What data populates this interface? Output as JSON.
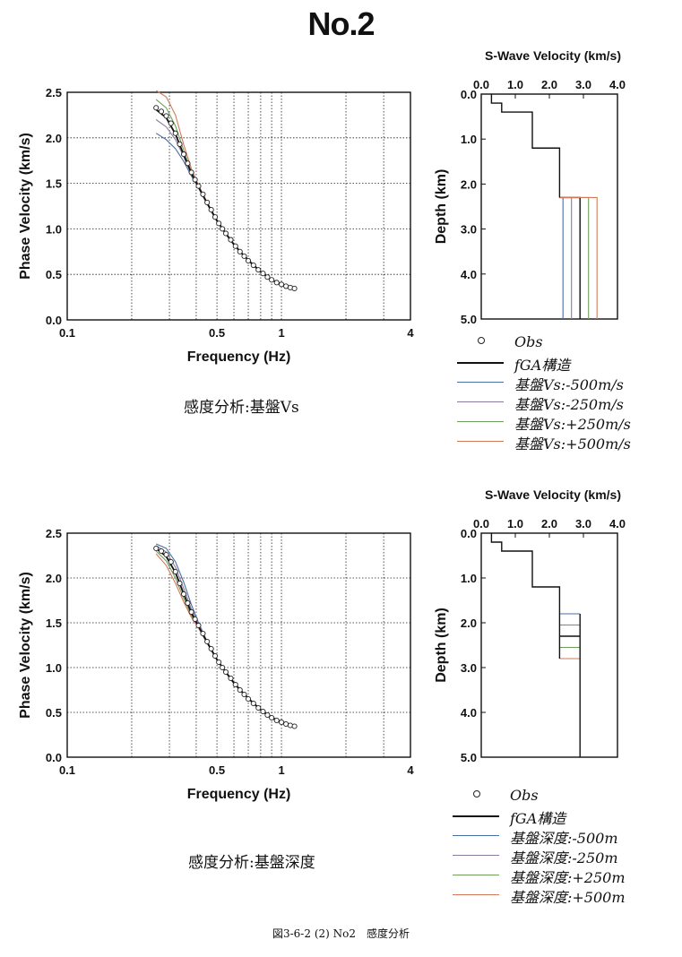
{
  "page_title": "No.2",
  "footer_caption": "図3-6-2 (2) No2　感度分析",
  "colors": {
    "obs": "#222222",
    "fga": "#111111",
    "minus500": "#4a6fa5",
    "minus250": "#8a7aa0",
    "plus250": "#6f9f5a",
    "plus500": "#d2795a"
  },
  "panels": [
    {
      "caption": "感度分析:基盤Vs",
      "legend": [
        {
          "style": "circle",
          "label": "Obs",
          "color": "#222222"
        },
        {
          "style": "line",
          "label": "fGA構造",
          "color": "#111111"
        },
        {
          "style": "line",
          "label": "基盤Vs:-500m/s",
          "color": "#4a6fa5"
        },
        {
          "style": "line",
          "label": "基盤Vs:-250m/s",
          "color": "#8a7aa0"
        },
        {
          "style": "line",
          "label": "基盤Vs:+250m/s",
          "color": "#6f9f5a"
        },
        {
          "style": "line",
          "label": "基盤Vs:+500m/s",
          "color": "#d2795a"
        }
      ]
    },
    {
      "caption": "感度分析:基盤深度",
      "legend": [
        {
          "style": "circle",
          "label": "Obs",
          "color": "#222222"
        },
        {
          "style": "line",
          "label": "fGA構造",
          "color": "#111111"
        },
        {
          "style": "line",
          "label": "基盤深度:-500m",
          "color": "#4a6fa5"
        },
        {
          "style": "line",
          "label": "基盤深度:-250m",
          "color": "#8a7aa0"
        },
        {
          "style": "line",
          "label": "基盤深度:+250m",
          "color": "#6f9f5a"
        },
        {
          "style": "line",
          "label": "基盤深度:+500m",
          "color": "#d2795a"
        }
      ]
    }
  ],
  "chart_data": [
    {
      "id": "dispersion-vs",
      "type": "line",
      "xlabel": "Frequency (Hz)",
      "ylabel": "Phase Velocity (km/s)",
      "xscale": "log",
      "xlim": [
        0.1,
        4
      ],
      "ylim": [
        0.0,
        2.5
      ],
      "xtick_labels": [
        "0.1",
        "0.5",
        "1",
        "4"
      ],
      "ytick_labels": [
        "0.0",
        "0.5",
        "1.0",
        "1.5",
        "2.0",
        "2.5"
      ],
      "grid": true,
      "obs": {
        "name": "Obs",
        "x": [
          0.26,
          0.275,
          0.29,
          0.305,
          0.32,
          0.335,
          0.35,
          0.365,
          0.38,
          0.395,
          0.41,
          0.43,
          0.45,
          0.47,
          0.49,
          0.51,
          0.53,
          0.55,
          0.58,
          0.61,
          0.64,
          0.67,
          0.7,
          0.74,
          0.78,
          0.82,
          0.86,
          0.9,
          0.95,
          1.0,
          1.05,
          1.1,
          1.15
        ],
        "y": [
          2.33,
          2.29,
          2.24,
          2.16,
          2.05,
          1.93,
          1.82,
          1.72,
          1.62,
          1.54,
          1.47,
          1.38,
          1.29,
          1.21,
          1.13,
          1.06,
          1.0,
          0.95,
          0.88,
          0.81,
          0.75,
          0.7,
          0.65,
          0.6,
          0.55,
          0.51,
          0.47,
          0.44,
          0.41,
          0.39,
          0.37,
          0.355,
          0.345
        ]
      },
      "series": [
        {
          "name": "fGA構造",
          "color": "#111111",
          "x": [
            0.26,
            0.29,
            0.32,
            0.35,
            0.38,
            0.41,
            0.45,
            0.5,
            0.55,
            0.6,
            0.66,
            0.72,
            0.8,
            0.9,
            1.0,
            1.1,
            1.15
          ],
          "y": [
            2.31,
            2.22,
            2.04,
            1.81,
            1.61,
            1.46,
            1.28,
            1.09,
            0.95,
            0.83,
            0.72,
            0.63,
            0.53,
            0.44,
            0.39,
            0.36,
            0.34
          ]
        },
        {
          "name": "基盤Vs:-500m/s",
          "color": "#4a6fa5",
          "x": [
            0.26,
            0.29,
            0.32,
            0.35,
            0.38,
            0.41,
            0.45,
            0.5,
            0.55,
            0.6,
            0.66,
            0.72,
            0.8,
            0.9,
            1.0,
            1.1,
            1.15
          ],
          "y": [
            2.05,
            1.98,
            1.88,
            1.74,
            1.58,
            1.45,
            1.27,
            1.08,
            0.94,
            0.82,
            0.71,
            0.62,
            0.52,
            0.44,
            0.39,
            0.36,
            0.34
          ]
        },
        {
          "name": "基盤Vs:-250m/s",
          "color": "#8a7aa0",
          "x": [
            0.26,
            0.29,
            0.32,
            0.35,
            0.38,
            0.41,
            0.45,
            0.5,
            0.55,
            0.6,
            0.66,
            0.72,
            0.8,
            0.9,
            1.0,
            1.1,
            1.15
          ],
          "y": [
            2.2,
            2.12,
            1.98,
            1.79,
            1.6,
            1.46,
            1.28,
            1.09,
            0.95,
            0.83,
            0.72,
            0.63,
            0.53,
            0.44,
            0.39,
            0.36,
            0.34
          ]
        },
        {
          "name": "基盤Vs:+250m/s",
          "color": "#6f9f5a",
          "x": [
            0.26,
            0.29,
            0.32,
            0.35,
            0.38,
            0.41,
            0.45,
            0.5,
            0.55,
            0.6,
            0.66,
            0.72,
            0.8,
            0.9,
            1.0,
            1.1,
            1.15
          ],
          "y": [
            2.42,
            2.33,
            2.13,
            1.86,
            1.63,
            1.47,
            1.29,
            1.09,
            0.95,
            0.83,
            0.72,
            0.63,
            0.53,
            0.44,
            0.39,
            0.36,
            0.34
          ]
        },
        {
          "name": "基盤Vs:+500m/s",
          "color": "#d2795a",
          "x": [
            0.26,
            0.29,
            0.32,
            0.35,
            0.38,
            0.41,
            0.45,
            0.5,
            0.55,
            0.6,
            0.66,
            0.72,
            0.8,
            0.9,
            1.0,
            1.1,
            1.15
          ],
          "y": [
            2.52,
            2.45,
            2.25,
            1.92,
            1.66,
            1.48,
            1.29,
            1.1,
            0.95,
            0.83,
            0.72,
            0.63,
            0.53,
            0.44,
            0.39,
            0.36,
            0.34
          ]
        }
      ]
    },
    {
      "id": "profile-vs",
      "type": "line",
      "title": "S-Wave Velocity (km/s)",
      "ylabel": "Depth (km)",
      "xlim": [
        0.0,
        4.0
      ],
      "ylim": [
        0.0,
        5.0
      ],
      "y_inverted": true,
      "xtick_labels": [
        "0.0",
        "1.0",
        "2.0",
        "3.0",
        "4.0"
      ],
      "ytick_labels": [
        "0.0",
        "1.0",
        "2.0",
        "3.0",
        "4.0",
        "5.0"
      ],
      "grid": false,
      "layers_top": {
        "vs": [
          0.3,
          0.6,
          1.5,
          2.3
        ],
        "bottom": [
          0.2,
          0.4,
          1.2,
          2.3
        ]
      },
      "halfspace": [
        {
          "name": "fGA構造",
          "color": "#111111",
          "vs": 2.9
        },
        {
          "name": "基盤Vs:-500m/s",
          "color": "#4a6fa5",
          "vs": 2.4
        },
        {
          "name": "基盤Vs:-250m/s",
          "color": "#8a7aa0",
          "vs": 2.65
        },
        {
          "name": "基盤Vs:+250m/s",
          "color": "#6f9f5a",
          "vs": 3.15
        },
        {
          "name": "基盤Vs:+500m/s",
          "color": "#d2795a",
          "vs": 3.4
        }
      ],
      "mode": "velocity"
    },
    {
      "id": "dispersion-depth",
      "type": "line",
      "xlabel": "Frequency (Hz)",
      "ylabel": "Phase Velocity (km/s)",
      "xscale": "log",
      "xlim": [
        0.1,
        4
      ],
      "ylim": [
        0.0,
        2.5
      ],
      "xtick_labels": [
        "0.1",
        "0.5",
        "1",
        "4"
      ],
      "ytick_labels": [
        "0.0",
        "0.5",
        "1.0",
        "1.5",
        "2.0",
        "2.5"
      ],
      "grid": true,
      "obs": {
        "name": "Obs",
        "x": [
          0.26,
          0.275,
          0.29,
          0.305,
          0.32,
          0.335,
          0.35,
          0.365,
          0.38,
          0.395,
          0.41,
          0.43,
          0.45,
          0.47,
          0.49,
          0.51,
          0.53,
          0.55,
          0.58,
          0.61,
          0.64,
          0.67,
          0.7,
          0.74,
          0.78,
          0.82,
          0.86,
          0.9,
          0.95,
          1.0,
          1.05,
          1.1,
          1.15
        ],
        "y": [
          2.33,
          2.3,
          2.26,
          2.18,
          2.07,
          1.94,
          1.82,
          1.72,
          1.62,
          1.54,
          1.47,
          1.38,
          1.29,
          1.21,
          1.13,
          1.06,
          1.0,
          0.95,
          0.88,
          0.81,
          0.75,
          0.7,
          0.65,
          0.6,
          0.55,
          0.51,
          0.47,
          0.44,
          0.41,
          0.39,
          0.37,
          0.355,
          0.345
        ]
      },
      "series": [
        {
          "name": "fGA構造",
          "color": "#111111",
          "x": [
            0.26,
            0.29,
            0.32,
            0.35,
            0.38,
            0.41,
            0.45,
            0.5,
            0.55,
            0.6,
            0.66,
            0.72,
            0.8,
            0.9,
            1.0,
            1.1,
            1.15
          ],
          "y": [
            2.33,
            2.24,
            2.06,
            1.82,
            1.61,
            1.46,
            1.28,
            1.09,
            0.95,
            0.83,
            0.72,
            0.63,
            0.53,
            0.44,
            0.39,
            0.36,
            0.34
          ]
        },
        {
          "name": "基盤深度:-500m",
          "color": "#4a6fa5",
          "x": [
            0.26,
            0.29,
            0.32,
            0.35,
            0.38,
            0.41,
            0.45,
            0.5,
            0.55,
            0.6,
            0.66,
            0.72,
            0.8,
            0.9,
            1.0,
            1.1,
            1.15
          ],
          "y": [
            2.38,
            2.33,
            2.18,
            1.95,
            1.7,
            1.5,
            1.29,
            1.09,
            0.95,
            0.83,
            0.72,
            0.63,
            0.53,
            0.45,
            0.4,
            0.37,
            0.35
          ]
        },
        {
          "name": "基盤深度:-250m",
          "color": "#8a7aa0",
          "x": [
            0.26,
            0.29,
            0.32,
            0.35,
            0.38,
            0.41,
            0.45,
            0.5,
            0.55,
            0.6,
            0.66,
            0.72,
            0.8,
            0.9,
            1.0,
            1.1,
            1.15
          ],
          "y": [
            2.36,
            2.29,
            2.12,
            1.88,
            1.65,
            1.48,
            1.28,
            1.09,
            0.95,
            0.83,
            0.72,
            0.63,
            0.53,
            0.44,
            0.39,
            0.36,
            0.34
          ]
        },
        {
          "name": "基盤深度:+250m",
          "color": "#6f9f5a",
          "x": [
            0.26,
            0.29,
            0.32,
            0.35,
            0.38,
            0.41,
            0.45,
            0.5,
            0.55,
            0.6,
            0.66,
            0.72,
            0.8,
            0.9,
            1.0,
            1.1,
            1.15
          ],
          "y": [
            2.3,
            2.19,
            2.0,
            1.77,
            1.58,
            1.45,
            1.27,
            1.08,
            0.94,
            0.82,
            0.71,
            0.62,
            0.52,
            0.44,
            0.39,
            0.36,
            0.34
          ]
        },
        {
          "name": "基盤深度:+500m",
          "color": "#d2795a",
          "x": [
            0.26,
            0.29,
            0.32,
            0.35,
            0.38,
            0.41,
            0.45,
            0.5,
            0.55,
            0.6,
            0.66,
            0.72,
            0.8,
            0.9,
            1.0,
            1.1,
            1.15
          ],
          "y": [
            2.27,
            2.14,
            1.94,
            1.73,
            1.56,
            1.44,
            1.27,
            1.08,
            0.94,
            0.82,
            0.71,
            0.62,
            0.52,
            0.43,
            0.38,
            0.35,
            0.33
          ]
        }
      ]
    },
    {
      "id": "profile-depth",
      "type": "line",
      "title": "S-Wave Velocity (km/s)",
      "ylabel": "Depth (km)",
      "xlim": [
        0.0,
        4.0
      ],
      "ylim": [
        0.0,
        5.0
      ],
      "y_inverted": true,
      "xtick_labels": [
        "0.0",
        "1.0",
        "2.0",
        "3.0",
        "4.0"
      ],
      "ytick_labels": [
        "0.0",
        "1.0",
        "2.0",
        "3.0",
        "4.0",
        "5.0"
      ],
      "grid": false,
      "layers_top": {
        "vs": [
          0.3,
          0.6,
          1.5,
          2.3
        ],
        "bottom": [
          0.2,
          0.4,
          1.2,
          2.3
        ]
      },
      "basement": [
        {
          "name": "fGA構造",
          "color": "#111111",
          "depth": 2.3
        },
        {
          "name": "基盤深度:-500m",
          "color": "#4a6fa5",
          "depth": 1.8
        },
        {
          "name": "基盤深度:-250m",
          "color": "#8a7aa0",
          "depth": 2.05
        },
        {
          "name": "基盤深度:+250m",
          "color": "#6f9f5a",
          "depth": 2.55
        },
        {
          "name": "基盤深度:+500m",
          "color": "#d2795a",
          "depth": 2.8
        }
      ],
      "basement_vs": 2.9,
      "mode": "depth"
    }
  ]
}
